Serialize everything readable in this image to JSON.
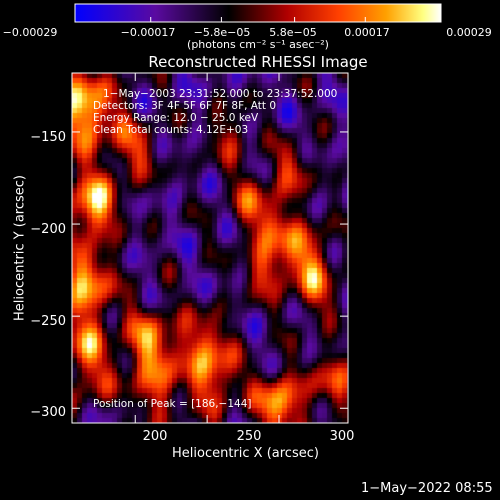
{
  "chart_data": {
    "type": "heatmap",
    "title": "Reconstructed RHESSI Image",
    "xlabel": "Heliocentric X (arcsec)",
    "ylabel": "Heliocentric Y (arcsec)",
    "xlim": [
      156,
      348
    ],
    "ylim": [
      -308,
      -118
    ],
    "x_ticks": [
      {
        "value": 200,
        "label": "200"
      },
      {
        "value": 250,
        "label": "250"
      },
      {
        "value": 300,
        "label": "300"
      }
    ],
    "y_ticks": [
      {
        "value": -150,
        "label": "−150"
      },
      {
        "value": -200,
        "label": "−200"
      },
      {
        "value": -250,
        "label": "−250"
      },
      {
        "value": -300,
        "label": "−300"
      }
    ],
    "colorbar": {
      "range": [
        -0.00029,
        0.00029
      ],
      "ticks": [
        {
          "value": -0.00029,
          "label": "−0.00029"
        },
        {
          "value": -0.00017,
          "label": "−0.00017"
        },
        {
          "value": -5.8e-05,
          "label": "−5.8e−05"
        },
        {
          "value": 5.8e-05,
          "label": "5.8e−05"
        },
        {
          "value": 0.00017,
          "label": "0.00017"
        },
        {
          "value": 0.00029,
          "label": "0.00029"
        }
      ],
      "unit_label": "(photons cm⁻² s⁻¹ asec⁻²)",
      "colors": [
        "#0000ff",
        "#5a0aa0",
        "#000000",
        "#b00000",
        "#ff4000",
        "#ffa000",
        "#ffff80",
        "#ffffff"
      ]
    },
    "annotations": {
      "time_range": "1−May−2003 23:31:52.000 to 23:37:52.000",
      "detectors": "Detectors: 3F 4F 5F 6F 7F 8F, Att 0",
      "energy_range": "Energy Range: 12.0 − 25.0 keV",
      "method": "Clean   Total counts: 4.12E+03",
      "peak": "Position of Peak = [186,−144]"
    },
    "hotspots": [
      {
        "x": 164,
        "y": -138,
        "intensity": 1.0,
        "radius": 16
      },
      {
        "x": 170,
        "y": -190,
        "intensity": 1.0,
        "radius": 12
      },
      {
        "x": 166,
        "y": -232,
        "intensity": 0.9,
        "radius": 13
      },
      {
        "x": 165,
        "y": -262,
        "intensity": 0.6,
        "radius": 10
      },
      {
        "x": 168,
        "y": -283,
        "intensity": 0.5,
        "radius": 12
      },
      {
        "x": 200,
        "y": -160,
        "intensity": 0.5,
        "radius": 12
      },
      {
        "x": 210,
        "y": -265,
        "intensity": 0.75,
        "radius": 14
      },
      {
        "x": 215,
        "y": -292,
        "intensity": 0.5,
        "radius": 12
      },
      {
        "x": 248,
        "y": -265,
        "intensity": 0.6,
        "radius": 12
      },
      {
        "x": 255,
        "y": -285,
        "intensity": 0.65,
        "radius": 12
      },
      {
        "x": 265,
        "y": -152,
        "intensity": 0.45,
        "radius": 10
      },
      {
        "x": 282,
        "y": -188,
        "intensity": 0.5,
        "radius": 12
      },
      {
        "x": 290,
        "y": -225,
        "intensity": 0.6,
        "radius": 10
      },
      {
        "x": 298,
        "y": -202,
        "intensity": 0.5,
        "radius": 10
      },
      {
        "x": 300,
        "y": -298,
        "intensity": 0.9,
        "radius": 12
      },
      {
        "x": 310,
        "y": -170,
        "intensity": 0.5,
        "radius": 10
      },
      {
        "x": 318,
        "y": -215,
        "intensity": 0.6,
        "radius": 12
      },
      {
        "x": 325,
        "y": -235,
        "intensity": 0.5,
        "radius": 12
      },
      {
        "x": 338,
        "y": -285,
        "intensity": 0.55,
        "radius": 12
      }
    ]
  },
  "footer": {
    "date": "1−May−2022 08:55"
  }
}
